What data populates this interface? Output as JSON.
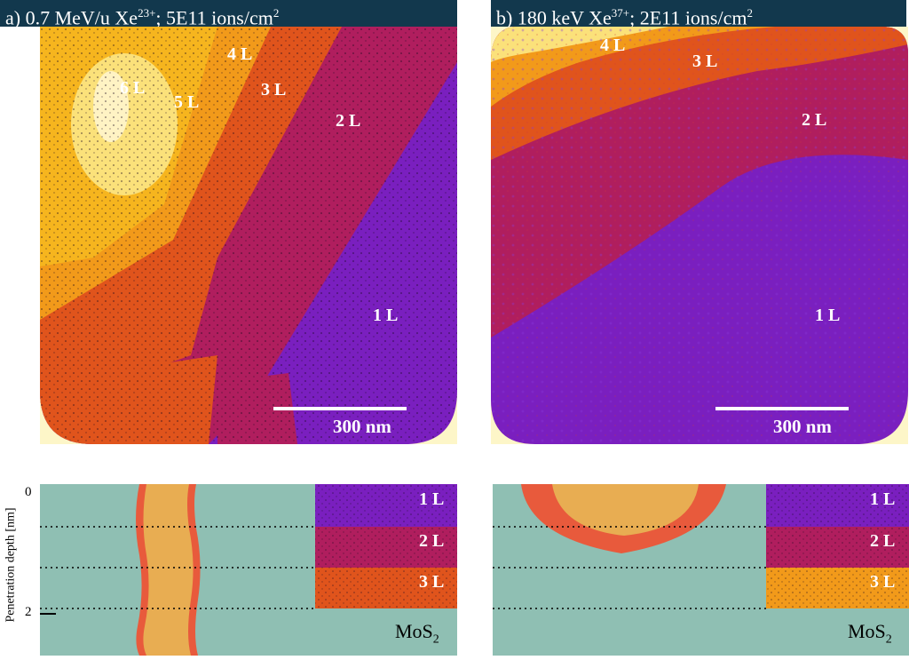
{
  "panel_a": {
    "title_main": "a) 0.7 MeV/u Xe",
    "title_sup": "23+",
    "title_rest": "; 5E11 ions/cm",
    "title_sup2": "2",
    "labels": [
      "6 L",
      "5 L",
      "4 L",
      "3 L",
      "2 L",
      "1 L"
    ],
    "scale": "300 nm"
  },
  "panel_b": {
    "title_main": "b) 180 keV Xe",
    "title_sup": "37+",
    "title_rest": "; 2E11 ions/cm",
    "title_sup2": "2",
    "labels": [
      "4 L",
      "3 L",
      "2 L",
      "1 L"
    ],
    "scale": "300 nm"
  },
  "schematic": {
    "axis_label": "Penetration depth [nm]",
    "tick_0": "0",
    "tick_2": "2",
    "material_main": "MoS",
    "material_sub": "2",
    "layers": [
      "1 L",
      "2 L",
      "3 L"
    ]
  },
  "colors": {
    "header_bg": "#12384d",
    "one_layer": "#7a1fbf",
    "two_layer": "#b01e5e",
    "three_layer": "#e0541c",
    "four_layer": "#f29a1a",
    "five_layer": "#f6b51e",
    "six_layer": "#fbe17a",
    "substrate": "#8fbfb3",
    "track_core": "#e8ad52",
    "track_edge": "#e85a3c"
  }
}
